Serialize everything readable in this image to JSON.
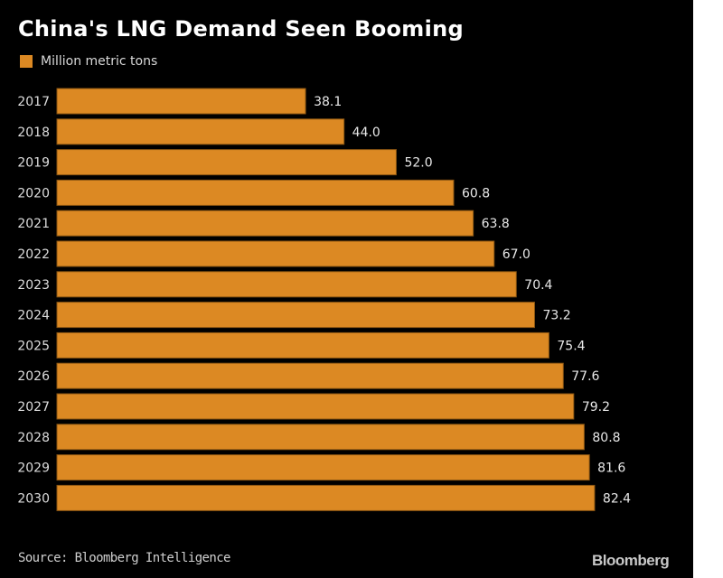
{
  "chart_data": {
    "type": "bar",
    "orientation": "horizontal",
    "title": "China's LNG Demand Seen Booming",
    "legend": [
      {
        "name": "Million metric tons",
        "color": "#dc8923"
      }
    ],
    "legend_position": "top-left",
    "categories": [
      "2017",
      "2018",
      "2019",
      "2020",
      "2021",
      "2022",
      "2023",
      "2024",
      "2025",
      "2026",
      "2027",
      "2028",
      "2029",
      "2030"
    ],
    "values": [
      38.1,
      44.0,
      52.0,
      60.8,
      63.8,
      67.0,
      70.4,
      73.2,
      75.4,
      77.6,
      79.2,
      80.8,
      81.6,
      82.4
    ],
    "value_labels": [
      "38.1",
      "44.0",
      "52.0",
      "60.8",
      "63.8",
      "67.0",
      "70.4",
      "73.2",
      "75.4",
      "77.6",
      "79.2",
      "80.8",
      "81.6",
      "82.4"
    ],
    "xlabel": "",
    "ylabel": "",
    "xlim": [
      0,
      100
    ],
    "grid": false,
    "bar_color": "#dc8923",
    "source": "Source: Bloomberg Intelligence",
    "brand": "Bloomberg"
  }
}
